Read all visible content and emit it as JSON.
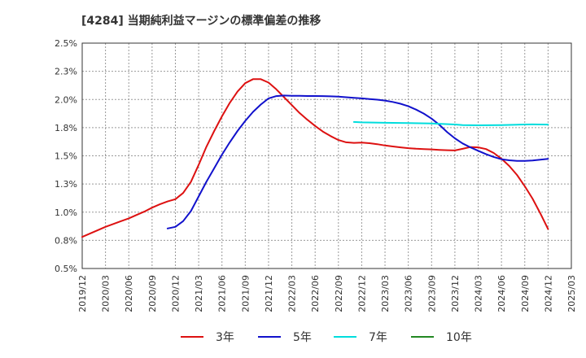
{
  "chart_data": {
    "type": "line",
    "title": "[4284]  当期純利益マージンの標準偏差の推移",
    "xlabel": "",
    "ylabel": "",
    "x_tick_labels": [
      "2019/12",
      "2020/03",
      "2020/06",
      "2020/09",
      "2020/12",
      "2021/03",
      "2021/06",
      "2021/09",
      "2021/12",
      "2022/03",
      "2022/06",
      "2022/09",
      "2022/12",
      "2023/03",
      "2023/06",
      "2023/09",
      "2023/12",
      "2024/03",
      "2024/06",
      "2024/09",
      "2024/12",
      "2025/03"
    ],
    "y_tick_labels": [
      "2.5%",
      "2.3%",
      "2.0%",
      "1.8%",
      "1.5%",
      "1.3%",
      "1.0%",
      "0.8%",
      "0.5%"
    ],
    "y_tick_values": [
      2.5,
      2.25,
      2.0,
      1.75,
      1.5,
      1.25,
      1.0,
      0.75,
      0.5
    ],
    "ylim": [
      0.5,
      2.5
    ],
    "grid": true,
    "legend_position": "bottom",
    "series": [
      {
        "name": "3年",
        "color": "#dd1111",
        "points": [
          [
            "2019/12",
            0.78
          ],
          [
            "2020/01",
            0.81
          ],
          [
            "2020/02",
            0.84
          ],
          [
            "2020/03",
            0.87
          ],
          [
            "2020/04",
            0.895
          ],
          [
            "2020/05",
            0.92
          ],
          [
            "2020/06",
            0.945
          ],
          [
            "2020/07",
            0.975
          ],
          [
            "2020/08",
            1.005
          ],
          [
            "2020/09",
            1.04
          ],
          [
            "2020/10",
            1.07
          ],
          [
            "2020/11",
            1.095
          ],
          [
            "2020/12",
            1.115
          ],
          [
            "2021/01",
            1.17
          ],
          [
            "2021/02",
            1.27
          ],
          [
            "2021/03",
            1.42
          ],
          [
            "2021/04",
            1.58
          ],
          [
            "2021/05",
            1.72
          ],
          [
            "2021/06",
            1.85
          ],
          [
            "2021/07",
            1.97
          ],
          [
            "2021/08",
            2.07
          ],
          [
            "2021/09",
            2.145
          ],
          [
            "2021/10",
            2.18
          ],
          [
            "2021/11",
            2.18
          ],
          [
            "2021/12",
            2.15
          ],
          [
            "2022/01",
            2.09
          ],
          [
            "2022/02",
            2.02
          ],
          [
            "2022/03",
            1.95
          ],
          [
            "2022/04",
            1.88
          ],
          [
            "2022/05",
            1.82
          ],
          [
            "2022/06",
            1.765
          ],
          [
            "2022/07",
            1.715
          ],
          [
            "2022/08",
            1.675
          ],
          [
            "2022/09",
            1.64
          ],
          [
            "2022/10",
            1.62
          ],
          [
            "2022/11",
            1.615
          ],
          [
            "2022/12",
            1.617
          ],
          [
            "2023/01",
            1.612
          ],
          [
            "2023/02",
            1.603
          ],
          [
            "2023/03",
            1.592
          ],
          [
            "2023/04",
            1.583
          ],
          [
            "2023/05",
            1.575
          ],
          [
            "2023/06",
            1.568
          ],
          [
            "2023/07",
            1.563
          ],
          [
            "2023/08",
            1.56
          ],
          [
            "2023/09",
            1.557
          ],
          [
            "2023/10",
            1.553
          ],
          [
            "2023/11",
            1.55
          ],
          [
            "2023/12",
            1.548
          ],
          [
            "2024/01",
            1.562
          ],
          [
            "2024/02",
            1.578
          ],
          [
            "2024/03",
            1.575
          ],
          [
            "2024/04",
            1.56
          ],
          [
            "2024/05",
            1.525
          ],
          [
            "2024/06",
            1.475
          ],
          [
            "2024/07",
            1.41
          ],
          [
            "2024/08",
            1.33
          ],
          [
            "2024/09",
            1.23
          ],
          [
            "2024/10",
            1.12
          ],
          [
            "2024/11",
            0.99
          ],
          [
            "2024/12",
            0.85
          ]
        ]
      },
      {
        "name": "5年",
        "color": "#1111cc",
        "points": [
          [
            "2020/11",
            0.855
          ],
          [
            "2020/12",
            0.87
          ],
          [
            "2021/01",
            0.92
          ],
          [
            "2021/02",
            1.01
          ],
          [
            "2021/03",
            1.14
          ],
          [
            "2021/04",
            1.27
          ],
          [
            "2021/05",
            1.39
          ],
          [
            "2021/06",
            1.51
          ],
          [
            "2021/07",
            1.62
          ],
          [
            "2021/08",
            1.72
          ],
          [
            "2021/09",
            1.81
          ],
          [
            "2021/10",
            1.89
          ],
          [
            "2021/11",
            1.955
          ],
          [
            "2021/12",
            2.01
          ],
          [
            "2022/01",
            2.03
          ],
          [
            "2022/02",
            2.035
          ],
          [
            "2022/03",
            2.033
          ],
          [
            "2022/04",
            2.032
          ],
          [
            "2022/05",
            2.031
          ],
          [
            "2022/06",
            2.031
          ],
          [
            "2022/07",
            2.03
          ],
          [
            "2022/08",
            2.028
          ],
          [
            "2022/09",
            2.025
          ],
          [
            "2022/10",
            2.02
          ],
          [
            "2022/11",
            2.015
          ],
          [
            "2022/12",
            2.01
          ],
          [
            "2023/01",
            2.004
          ],
          [
            "2023/02",
            1.998
          ],
          [
            "2023/03",
            1.99
          ],
          [
            "2023/04",
            1.978
          ],
          [
            "2023/05",
            1.962
          ],
          [
            "2023/06",
            1.94
          ],
          [
            "2023/07",
            1.91
          ],
          [
            "2023/08",
            1.875
          ],
          [
            "2023/09",
            1.83
          ],
          [
            "2023/10",
            1.775
          ],
          [
            "2023/11",
            1.71
          ],
          [
            "2023/12",
            1.655
          ],
          [
            "2024/01",
            1.61
          ],
          [
            "2024/02",
            1.575
          ],
          [
            "2024/03",
            1.545
          ],
          [
            "2024/04",
            1.515
          ],
          [
            "2024/05",
            1.49
          ],
          [
            "2024/06",
            1.47
          ],
          [
            "2024/07",
            1.46
          ],
          [
            "2024/08",
            1.455
          ],
          [
            "2024/09",
            1.455
          ],
          [
            "2024/10",
            1.458
          ],
          [
            "2024/11",
            1.465
          ],
          [
            "2024/12",
            1.473
          ]
        ]
      },
      {
        "name": "7年",
        "color": "#00dddd",
        "points": [
          [
            "2022/11",
            1.8
          ],
          [
            "2022/12",
            1.797
          ],
          [
            "2023/03",
            1.793
          ],
          [
            "2023/06",
            1.79
          ],
          [
            "2023/09",
            1.787
          ],
          [
            "2023/12",
            1.778
          ],
          [
            "2024/01",
            1.772
          ],
          [
            "2024/03",
            1.771
          ],
          [
            "2024/06",
            1.773
          ],
          [
            "2024/09",
            1.778
          ],
          [
            "2024/10",
            1.779
          ],
          [
            "2024/12",
            1.777
          ]
        ]
      },
      {
        "name": "10年",
        "color": "#228822",
        "points": []
      }
    ]
  }
}
